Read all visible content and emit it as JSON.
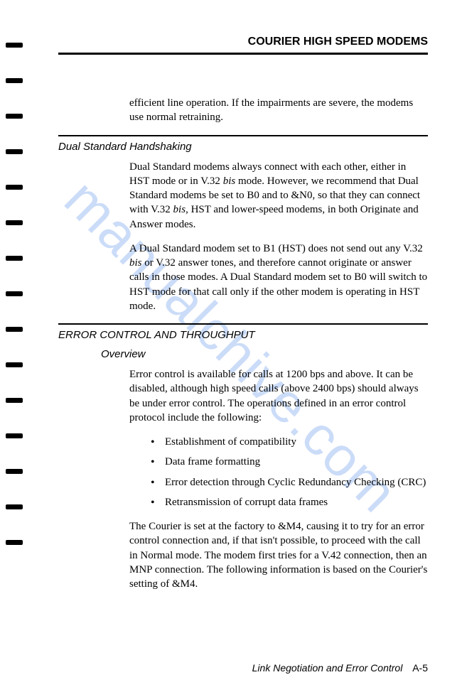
{
  "header": {
    "title": "COURIER HIGH SPEED MODEMS"
  },
  "intro_continuation": "efficient line operation.  If the impairments are severe, the modems use normal retraining.",
  "section1": {
    "heading": "Dual Standard Handshaking",
    "p1_a": "Dual Standard modems always connect with each other, either in HST mode or in V.32 ",
    "p1_bis1": "bis",
    "p1_b": " mode.  However, we  recommend that Dual Standard modems be set to B0 and to &N0, so that they can connect with V.32 ",
    "p1_bis2": "bis",
    "p1_c": ", HST and lower-speed modems, in both Originate and Answer modes.",
    "p2_a": "A Dual Standard modem set to B1 (HST) does not send out any V.32 ",
    "p2_bis": "bis",
    "p2_b": " or V.32 answer tones, and therefore cannot originate or answer calls in those modes.  A Dual Standard modem set to B0 will switch to HST mode for that call only if the other modem is operating in HST mode."
  },
  "section2": {
    "heading": "ERROR CONTROL AND THROUGHPUT",
    "sub": "Overview",
    "p1": "Error control is available for calls at 1200 bps and above.  It can be disabled, although high speed calls (above 2400 bps) should always be under error control. The operations defined in an error control protocol include the following:",
    "bullets": [
      "Establishment of compatibility",
      "Data frame formatting",
      "Error detection through Cyclic Redundancy Checking (CRC)",
      "Retransmission of corrupt data frames"
    ],
    "p2": "The Courier is set at the factory to &M4, causing it to try for an error control connection and, if that isn't possible, to proceed with the call in Normal mode.  The modem first tries for a V.42 connection, then an MNP connection.  The following information is based on the Courier's setting of &M4."
  },
  "footer": {
    "chapter": "Link Negotiation and Error Control",
    "page": "A-5"
  },
  "watermark": "manualchive.com",
  "binding_mark_count": 15,
  "colors": {
    "text": "#000000",
    "background": "#ffffff",
    "watermark": "rgba(70,130,230,0.28)"
  }
}
